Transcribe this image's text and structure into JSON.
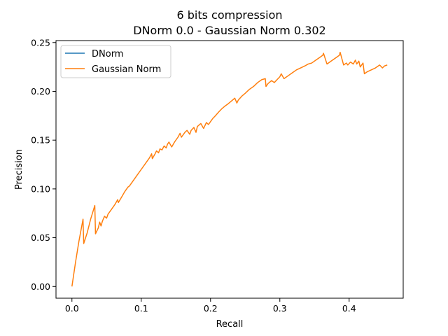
{
  "chart_data": {
    "type": "line",
    "title_line1": "6 bits compression",
    "title_line2": "DNorm 0.0 - Gaussian Norm 0.302",
    "xlabel": "Recall",
    "ylabel": "Precision",
    "xlim": [
      -0.023,
      0.478
    ],
    "ylim": [
      -0.012,
      0.252
    ],
    "xticks": [
      0.0,
      0.1,
      0.2,
      0.3,
      0.4
    ],
    "xtick_labels": [
      "0.0",
      "0.1",
      "0.2",
      "0.3",
      "0.4"
    ],
    "yticks": [
      0.0,
      0.05,
      0.1,
      0.15,
      0.2,
      0.25
    ],
    "ytick_labels": [
      "0.00",
      "0.05",
      "0.10",
      "0.15",
      "0.20",
      "0.25"
    ],
    "grid": false,
    "legend_position": "top-left",
    "series": [
      {
        "name": "DNorm",
        "color": "#1f77b4",
        "x": [],
        "y": []
      },
      {
        "name": "Gaussian Norm",
        "color": "#ff7f0e",
        "x": [
          0.0,
          0.005,
          0.01,
          0.016,
          0.017,
          0.022,
          0.027,
          0.033,
          0.034,
          0.038,
          0.04,
          0.042,
          0.044,
          0.047,
          0.05,
          0.052,
          0.057,
          0.062,
          0.066,
          0.067,
          0.072,
          0.076,
          0.081,
          0.083,
          0.088,
          0.094,
          0.1,
          0.106,
          0.112,
          0.115,
          0.116,
          0.12,
          0.122,
          0.125,
          0.127,
          0.13,
          0.133,
          0.136,
          0.138,
          0.14,
          0.144,
          0.148,
          0.153,
          0.156,
          0.158,
          0.163,
          0.166,
          0.17,
          0.172,
          0.176,
          0.179,
          0.181,
          0.186,
          0.19,
          0.194,
          0.197,
          0.2,
          0.203,
          0.207,
          0.212,
          0.216,
          0.221,
          0.225,
          0.23,
          0.235,
          0.238,
          0.24,
          0.245,
          0.25,
          0.256,
          0.262,
          0.268,
          0.274,
          0.279,
          0.28,
          0.283,
          0.288,
          0.292,
          0.296,
          0.3,
          0.302,
          0.306,
          0.312,
          0.318,
          0.324,
          0.33,
          0.336,
          0.341,
          0.346,
          0.352,
          0.358,
          0.362,
          0.363,
          0.368,
          0.374,
          0.38,
          0.386,
          0.387,
          0.392,
          0.396,
          0.398,
          0.402,
          0.406,
          0.409,
          0.411,
          0.414,
          0.416,
          0.42,
          0.422,
          0.426,
          0.432,
          0.438,
          0.444,
          0.448,
          0.451,
          0.455
        ],
        "y": [
          0.0,
          0.024,
          0.046,
          0.069,
          0.044,
          0.055,
          0.069,
          0.083,
          0.054,
          0.06,
          0.066,
          0.062,
          0.067,
          0.072,
          0.07,
          0.074,
          0.079,
          0.084,
          0.089,
          0.086,
          0.092,
          0.097,
          0.102,
          0.103,
          0.108,
          0.114,
          0.12,
          0.126,
          0.132,
          0.136,
          0.131,
          0.136,
          0.139,
          0.137,
          0.141,
          0.14,
          0.144,
          0.142,
          0.146,
          0.148,
          0.143,
          0.148,
          0.153,
          0.157,
          0.153,
          0.158,
          0.16,
          0.156,
          0.16,
          0.163,
          0.158,
          0.164,
          0.167,
          0.162,
          0.168,
          0.166,
          0.169,
          0.172,
          0.175,
          0.179,
          0.182,
          0.185,
          0.187,
          0.19,
          0.193,
          0.188,
          0.191,
          0.195,
          0.198,
          0.202,
          0.205,
          0.209,
          0.212,
          0.213,
          0.205,
          0.208,
          0.211,
          0.209,
          0.212,
          0.215,
          0.218,
          0.213,
          0.216,
          0.219,
          0.222,
          0.224,
          0.226,
          0.228,
          0.229,
          0.232,
          0.235,
          0.237,
          0.239,
          0.228,
          0.231,
          0.234,
          0.237,
          0.24,
          0.227,
          0.229,
          0.227,
          0.23,
          0.228,
          0.232,
          0.228,
          0.231,
          0.225,
          0.229,
          0.218,
          0.22,
          0.222,
          0.224,
          0.227,
          0.224,
          0.226,
          0.227
        ]
      }
    ]
  }
}
